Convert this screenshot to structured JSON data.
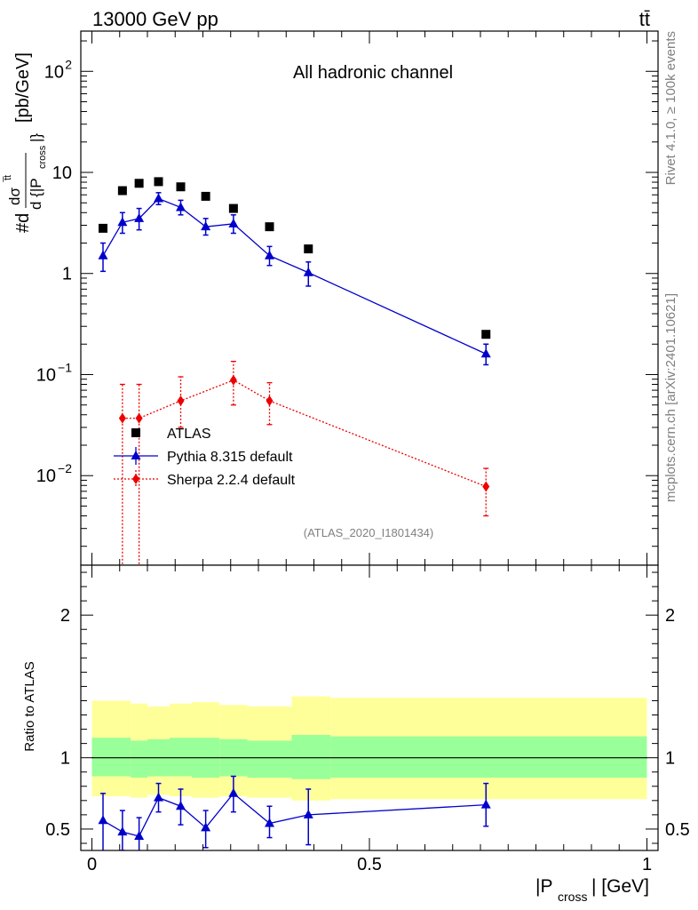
{
  "header": {
    "left": "13000 GeV pp",
    "right": "tt̄"
  },
  "side": {
    "rivet": "Rivet 4.1.0, ≥ 100k events",
    "mcplots": "mcplots.cern.ch [arXiv:2401.10621]"
  },
  "colors": {
    "data": "#000000",
    "pythia": "#0000cc",
    "sherpa": "#ee0000",
    "band_outer": "#ffff99",
    "band_inner": "#99ff99"
  },
  "chart_data": [
    {
      "type": "scatter",
      "panel": "main",
      "title": "All hadronic channel",
      "analysis_tag": "(ATLAS_2020_I1801434)",
      "ylabel": "#d dσ^{t̄t} / d {|P_cross|} [pb/GeV]",
      "yscale": "log",
      "ylim": [
        0.0013,
        250
      ],
      "xlim": [
        -0.02,
        1.02
      ],
      "ytick_labels": [
        "10^-2",
        "10^-1",
        "1",
        "10",
        "10^2"
      ],
      "legend_position": "lower-left",
      "legend": [
        "ATLAS",
        "Pythia 8.315 default",
        "Sherpa 2.2.4 default"
      ],
      "series": [
        {
          "name": "ATLAS",
          "marker": "square",
          "points": [
            {
              "x": 0.02,
              "y": 2.8
            },
            {
              "x": 0.055,
              "y": 6.6
            },
            {
              "x": 0.085,
              "y": 7.8
            },
            {
              "x": 0.12,
              "y": 8.1
            },
            {
              "x": 0.16,
              "y": 7.2
            },
            {
              "x": 0.205,
              "y": 5.8
            },
            {
              "x": 0.255,
              "y": 4.4
            },
            {
              "x": 0.32,
              "y": 2.9
            },
            {
              "x": 0.39,
              "y": 1.75
            },
            {
              "x": 0.71,
              "y": 0.25
            }
          ]
        },
        {
          "name": "Pythia 8.315 default",
          "marker": "triangle",
          "line": "solid",
          "points": [
            {
              "x": 0.02,
              "y": 1.5,
              "lo": 1.05,
              "hi": 2.0
            },
            {
              "x": 0.055,
              "y": 3.2,
              "lo": 2.5,
              "hi": 4.0
            },
            {
              "x": 0.085,
              "y": 3.5,
              "lo": 2.7,
              "hi": 4.4
            },
            {
              "x": 0.12,
              "y": 5.5,
              "lo": 4.8,
              "hi": 6.3
            },
            {
              "x": 0.16,
              "y": 4.5,
              "lo": 3.8,
              "hi": 5.3
            },
            {
              "x": 0.205,
              "y": 2.9,
              "lo": 2.4,
              "hi": 3.5
            },
            {
              "x": 0.255,
              "y": 3.1,
              "lo": 2.5,
              "hi": 3.8
            },
            {
              "x": 0.32,
              "y": 1.5,
              "lo": 1.2,
              "hi": 1.85
            },
            {
              "x": 0.39,
              "y": 1.02,
              "lo": 0.75,
              "hi": 1.3
            },
            {
              "x": 0.71,
              "y": 0.16,
              "lo": 0.125,
              "hi": 0.2
            }
          ]
        },
        {
          "name": "Sherpa 2.2.4 default",
          "marker": "diamond",
          "line": "dotted",
          "points": [
            {
              "x": 0.055,
              "y": 0.037,
              "lo": 0.0001,
              "hi": 0.08
            },
            {
              "x": 0.085,
              "y": 0.037,
              "lo": 0.0001,
              "hi": 0.08
            },
            {
              "x": 0.16,
              "y": 0.055,
              "lo": 0.03,
              "hi": 0.095
            },
            {
              "x": 0.255,
              "y": 0.088,
              "lo": 0.05,
              "hi": 0.135
            },
            {
              "x": 0.32,
              "y": 0.055,
              "lo": 0.032,
              "hi": 0.083
            },
            {
              "x": 0.71,
              "y": 0.0078,
              "lo": 0.004,
              "hi": 0.0118
            }
          ]
        }
      ]
    },
    {
      "type": "line",
      "panel": "ratio",
      "ylabel": "Ratio to ATLAS",
      "xlabel": "|P_cross| [GeV]",
      "ylim": [
        0.35,
        2.35
      ],
      "xlim": [
        -0.02,
        1.02
      ],
      "ytick_labels": [
        "0.5",
        "1",
        "2"
      ],
      "xtick_labels": [
        "0",
        "0.5",
        "1"
      ],
      "reference_line": 1,
      "bands": [
        {
          "x0": 0.0,
          "x1": 0.07,
          "inner": [
            0.87,
            1.14
          ],
          "outer": [
            0.73,
            1.4
          ]
        },
        {
          "x0": 0.07,
          "x1": 0.1,
          "inner": [
            0.86,
            1.12
          ],
          "outer": [
            0.72,
            1.38
          ]
        },
        {
          "x0": 0.1,
          "x1": 0.14,
          "inner": [
            0.87,
            1.13
          ],
          "outer": [
            0.74,
            1.36
          ]
        },
        {
          "x0": 0.14,
          "x1": 0.18,
          "inner": [
            0.87,
            1.14
          ],
          "outer": [
            0.73,
            1.38
          ]
        },
        {
          "x0": 0.18,
          "x1": 0.23,
          "inner": [
            0.86,
            1.14
          ],
          "outer": [
            0.72,
            1.39
          ]
        },
        {
          "x0": 0.23,
          "x1": 0.28,
          "inner": [
            0.87,
            1.13
          ],
          "outer": [
            0.73,
            1.37
          ]
        },
        {
          "x0": 0.28,
          "x1": 0.36,
          "inner": [
            0.86,
            1.12
          ],
          "outer": [
            0.72,
            1.36
          ]
        },
        {
          "x0": 0.36,
          "x1": 0.43,
          "inner": [
            0.85,
            1.16
          ],
          "outer": [
            0.7,
            1.43
          ]
        },
        {
          "x0": 0.43,
          "x1": 1.0,
          "inner": [
            0.86,
            1.15
          ],
          "outer": [
            0.71,
            1.42
          ]
        }
      ],
      "series": [
        {
          "name": "Pythia 8.315 default",
          "points": [
            {
              "x": 0.02,
              "y": 0.56,
              "lo": 0.33,
              "hi": 0.75
            },
            {
              "x": 0.055,
              "y": 0.48,
              "lo": 0.35,
              "hi": 0.63
            },
            {
              "x": 0.085,
              "y": 0.45,
              "lo": 0.33,
              "hi": 0.58
            },
            {
              "x": 0.12,
              "y": 0.72,
              "lo": 0.62,
              "hi": 0.82
            },
            {
              "x": 0.16,
              "y": 0.66,
              "lo": 0.53,
              "hi": 0.78
            },
            {
              "x": 0.205,
              "y": 0.51,
              "lo": 0.37,
              "hi": 0.63
            },
            {
              "x": 0.255,
              "y": 0.75,
              "lo": 0.62,
              "hi": 0.87
            },
            {
              "x": 0.32,
              "y": 0.54,
              "lo": 0.44,
              "hi": 0.66
            },
            {
              "x": 0.39,
              "y": 0.6,
              "lo": 0.39,
              "hi": 0.78
            },
            {
              "x": 0.71,
              "y": 0.67,
              "lo": 0.52,
              "hi": 0.82
            }
          ]
        }
      ]
    }
  ]
}
